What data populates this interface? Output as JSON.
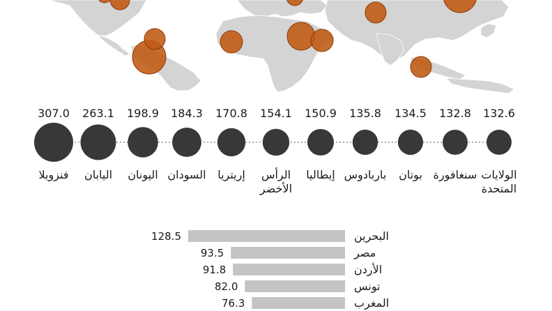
{
  "colors": {
    "land": "#d4d4d4",
    "land_edge": "#ffffff",
    "bubble": "#bf5a12",
    "bubble_edge": "#8a3a05",
    "dot": "#383838",
    "connector": "#555555",
    "bar": "#c4c4c4",
    "text": "#1a1a1a"
  },
  "map": {
    "bubbles": [
      {
        "country": "الولايات المتحدة",
        "value": 132.6
      },
      {
        "country": "المكسيك",
        "value": null
      },
      {
        "country": "فنزويلا",
        "value": 307.0
      },
      {
        "country": "كولومبيا",
        "value": null
      },
      {
        "country": "الرأس الأخضر",
        "value": 154.1
      },
      {
        "country": "إيطاليا",
        "value": 150.9
      },
      {
        "country": "السودان",
        "value": 184.3
      },
      {
        "country": "إريتريا",
        "value": 170.8
      },
      {
        "country": "بوتان",
        "value": 134.5
      },
      {
        "country": "سنغافورة",
        "value": 132.8
      },
      {
        "country": "اليابان",
        "value": 263.1
      }
    ]
  },
  "chart_data": [
    {
      "type": "scatter",
      "categories": [
        "فنزويلا",
        "اليابان",
        "اليونان",
        "السودان",
        "إريتريا",
        "الرأس الأخضر",
        "إيطاليا",
        "باربادوس",
        "بوتان",
        "سنغافورة",
        "الولايات المتحدة"
      ],
      "label_lines": [
        [
          "فنزويلا"
        ],
        [
          "اليابان"
        ],
        [
          "اليونان"
        ],
        [
          "السودان"
        ],
        [
          "إريتريا"
        ],
        [
          "الرأس",
          "الأخضر"
        ],
        [
          "إيطاليا"
        ],
        [
          "باربادوس"
        ],
        [
          "بوتان"
        ],
        [
          "سنغافورة"
        ],
        [
          "الولايات",
          "المتحدة"
        ]
      ],
      "values": [
        307.0,
        263.1,
        198.9,
        184.3,
        170.8,
        154.1,
        150.9,
        135.8,
        134.5,
        132.8,
        132.6
      ],
      "labels": [
        "307.0",
        "263.1",
        "198.9",
        "184.3",
        "170.8",
        "154.1",
        "150.9",
        "135.8",
        "134.5",
        "132.8",
        "132.6"
      ]
    },
    {
      "type": "bar",
      "orientation": "horizontal",
      "categories": [
        "البحرين",
        "مصر",
        "الأردن",
        "تونس",
        "المغرب"
      ],
      "values": [
        128.5,
        93.5,
        91.8,
        82.0,
        76.3
      ],
      "labels": [
        "128.5",
        "93.5",
        "91.8",
        "82.0",
        "76.3"
      ]
    }
  ]
}
